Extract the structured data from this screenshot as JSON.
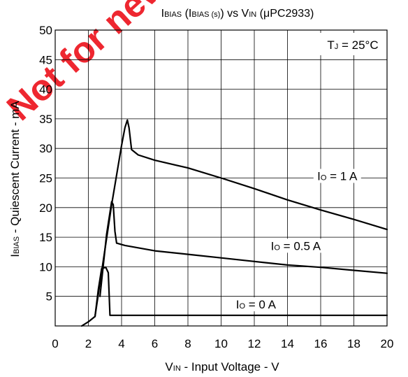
{
  "chart_data": {
    "type": "line",
    "title": {
      "main_prefix": "I",
      "main_sub": "BIAS",
      "paren_open": " (I",
      "paren_sub": "BIAS (s)",
      "paren_close": ") vs V",
      "vin_sub": "IN",
      "tail": " (μPC2933)"
    },
    "xlabel": {
      "prefix": "V",
      "sub": "IN",
      "rest": " - Input Voltage - V"
    },
    "ylabel": {
      "prefix": "I",
      "sub": "BIAS",
      "rest": " - Quiescent Current - mA"
    },
    "xlim": [
      0,
      20
    ],
    "ylim": [
      0,
      50
    ],
    "xticks": [
      0,
      2,
      4,
      6,
      8,
      10,
      12,
      14,
      16,
      18,
      20
    ],
    "yticks": [
      5,
      10,
      15,
      20,
      25,
      30,
      35,
      40,
      45,
      50
    ],
    "grid": true,
    "condition": {
      "prefix": "T",
      "sub": "J",
      "rest": " = 25°C"
    },
    "line_color": "#000000",
    "grid_color": "#000000",
    "series": [
      {
        "label": {
          "prefix": "I",
          "sub": "O",
          "rest": " = 1 A"
        },
        "label_at": [
          17.0,
          25.0
        ],
        "points": [
          [
            1.6,
            0
          ],
          [
            2.0,
            0.7
          ],
          [
            2.4,
            1.6
          ],
          [
            2.8,
            9.2
          ],
          [
            3.4,
            20.5
          ],
          [
            4.0,
            30.5
          ],
          [
            4.2,
            33.5
          ],
          [
            4.35,
            34.8
          ],
          [
            4.45,
            33.5
          ],
          [
            4.6,
            29.8
          ],
          [
            5.0,
            28.9
          ],
          [
            6.0,
            28.0
          ],
          [
            8.0,
            26.7
          ],
          [
            10.0,
            25.0
          ],
          [
            12.0,
            23.2
          ],
          [
            14.0,
            21.3
          ],
          [
            16.0,
            19.6
          ],
          [
            18.0,
            18.0
          ],
          [
            20.0,
            16.3
          ]
        ]
      },
      {
        "label": {
          "prefix": "I",
          "sub": "O",
          "rest": " = 0.5 A"
        },
        "label_at": [
          14.5,
          13.2
        ],
        "points": [
          [
            2.7,
            5.0
          ],
          [
            3.1,
            15.5
          ],
          [
            3.4,
            21.0
          ],
          [
            3.5,
            20.5
          ],
          [
            3.6,
            16.0
          ],
          [
            3.7,
            14.0
          ],
          [
            4.2,
            13.6
          ],
          [
            6.0,
            12.7
          ],
          [
            8.0,
            12.1
          ],
          [
            10.0,
            11.5
          ],
          [
            12.0,
            10.9
          ],
          [
            14.0,
            10.3
          ],
          [
            16.0,
            9.9
          ],
          [
            18.0,
            9.4
          ],
          [
            20.0,
            8.9
          ]
        ]
      },
      {
        "label": {
          "prefix": "I",
          "sub": "O",
          "rest": " = 0 A"
        },
        "label_at": [
          12.1,
          3.3
        ],
        "points": [
          [
            2.4,
            1.6
          ],
          [
            2.6,
            6.2
          ],
          [
            2.8,
            9.7
          ],
          [
            3.05,
            9.9
          ],
          [
            3.2,
            9.0
          ],
          [
            3.3,
            1.8
          ],
          [
            20.0,
            1.8
          ]
        ]
      }
    ],
    "watermark": "Not for new design"
  }
}
